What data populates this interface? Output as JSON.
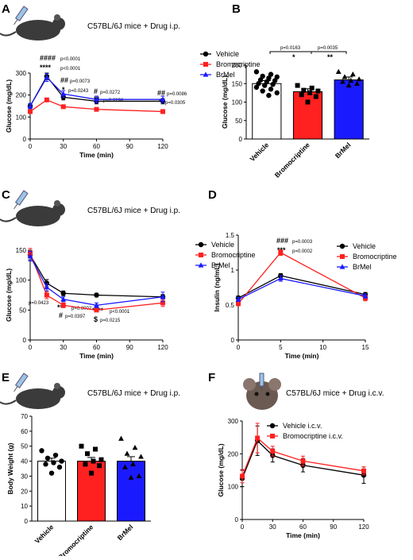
{
  "colors": {
    "vehicle": "#000000",
    "bromocriptine": "#ff2020",
    "brmel": "#1a1aff",
    "bar_vehicle": "#ffffff"
  },
  "icons": {
    "mouse": "mouse-icon",
    "syringe": "syringe-icon"
  },
  "panels": {
    "A": {
      "letter": "A",
      "title": "C57BL/6J mice + Drug i.p.",
      "annotations": [
        {
          "s": "####",
          "p": "p<0.0001"
        },
        {
          "s": "****",
          "p": "p<0.0001"
        },
        {
          "s": "##",
          "p": "p=0.0073"
        },
        {
          "s": "*",
          "p": "p=0.0243"
        },
        {
          "s": "#",
          "p": "p=0.0272"
        },
        {
          "s": "**",
          "p": "p=0.0298"
        },
        {
          "s": "##",
          "p": "p=0.0086"
        },
        {
          "s": "*",
          "p": "p=0.0305"
        }
      ]
    },
    "B": {
      "letter": "B",
      "annotations": [
        {
          "s": "*",
          "p": "p=0.0163"
        },
        {
          "s": "**",
          "p": "p=0.0035"
        }
      ]
    },
    "C": {
      "letter": "C",
      "title": "C57BL/6J mice + Drug i.p.",
      "annotations": [
        {
          "s": "*",
          "p": "p=0.0423"
        },
        {
          "s": "***",
          "p": "p=0.0002"
        },
        {
          "s": "****",
          "p": "p<0.0001"
        },
        {
          "s": "#",
          "p": "p=0.0397"
        },
        {
          "s": "$",
          "p": "p=0.0215"
        }
      ]
    },
    "D": {
      "letter": "D",
      "annotations": [
        {
          "s": "###",
          "p": "p=0.0003"
        },
        {
          "s": "***",
          "p": "p=0.0002"
        }
      ]
    },
    "E": {
      "letter": "E",
      "title": "C57BL/6J mice + Drug i.p."
    },
    "F": {
      "letter": "F",
      "title": "C57BL/6J mice + Drug i.c.v."
    }
  },
  "chart_data": [
    {
      "id": "A",
      "type": "line",
      "x": [
        0,
        15,
        30,
        60,
        120
      ],
      "xlabel": "Time (min)",
      "ylabel": "Glucose (mg/dL)",
      "xlim": [
        0,
        120
      ],
      "ylim": [
        0,
        300
      ],
      "xticks": [
        0,
        30,
        60,
        90,
        120
      ],
      "yticks": [
        0,
        100,
        200,
        300
      ],
      "legend_position": "right",
      "series": [
        {
          "name": "Vehicle",
          "marker": "circle",
          "values": [
            150,
            285,
            190,
            172,
            172
          ],
          "err": [
            10,
            15,
            12,
            12,
            12
          ]
        },
        {
          "name": "Bromocriptine",
          "marker": "square",
          "values": [
            125,
            178,
            147,
            135,
            125
          ],
          "err": [
            6,
            8,
            6,
            6,
            8
          ]
        },
        {
          "name": "BrMel",
          "marker": "triangle",
          "values": [
            150,
            280,
            205,
            180,
            180
          ],
          "err": [
            12,
            18,
            15,
            15,
            15
          ]
        }
      ]
    },
    {
      "id": "B",
      "type": "bar",
      "categories": [
        "Vehicle",
        "Bromocriptine",
        "BrMel"
      ],
      "values": [
        150,
        128,
        160
      ],
      "err": [
        8,
        8,
        8
      ],
      "ylabel": "Glucose (mg/dL)",
      "ylim": [
        0,
        200
      ],
      "yticks": [
        0,
        50,
        100,
        150,
        200
      ],
      "points": [
        [
          182,
          175,
          170,
          168,
          165,
          160,
          158,
          155,
          150,
          148,
          145,
          140,
          135,
          130,
          125,
          118
        ],
        [
          145,
          138,
          132,
          130,
          125,
          120,
          115,
          100
        ],
        [
          182,
          175,
          168,
          162,
          158,
          155,
          150,
          145
        ]
      ]
    },
    {
      "id": "C",
      "type": "line",
      "x": [
        0,
        15,
        30,
        60,
        120
      ],
      "xlabel": "Time (min)",
      "ylabel": "Glucose (mg/dL)",
      "xlim": [
        0,
        120
      ],
      "ylim": [
        0,
        150
      ],
      "xticks": [
        0,
        30,
        60,
        90,
        120
      ],
      "yticks": [
        0,
        50,
        100,
        150
      ],
      "legend_position": "right",
      "series": [
        {
          "name": "Vehicle",
          "marker": "circle",
          "values": [
            142,
            95,
            78,
            75,
            72
          ],
          "err": [
            8,
            6,
            4,
            3,
            4
          ]
        },
        {
          "name": "Bromocriptine",
          "marker": "square",
          "values": [
            145,
            75,
            58,
            50,
            62
          ],
          "err": [
            8,
            6,
            4,
            3,
            6
          ]
        },
        {
          "name": "BrMel",
          "marker": "triangle",
          "values": [
            140,
            88,
            68,
            58,
            72
          ],
          "err": [
            8,
            6,
            4,
            4,
            8
          ]
        }
      ]
    },
    {
      "id": "D",
      "type": "line",
      "x": [
        0,
        5,
        15
      ],
      "xlabel": "Time (min)",
      "ylabel": "Insulin (ng/mL)",
      "xlim": [
        0,
        15
      ],
      "ylim": [
        0,
        1.5
      ],
      "xticks": [
        0,
        5,
        10,
        15
      ],
      "yticks": [
        0.0,
        0.5,
        1.0,
        1.5
      ],
      "legend_position": "right",
      "series": [
        {
          "name": "Vehicle",
          "marker": "circle",
          "values": [
            0.6,
            0.92,
            0.65
          ],
          "err": [
            0.03,
            0.03,
            0.03
          ]
        },
        {
          "name": "Bromocriptine",
          "marker": "square",
          "values": [
            0.52,
            1.25,
            0.6
          ],
          "err": [
            0.03,
            0.04,
            0.04
          ]
        },
        {
          "name": "BrMel",
          "marker": "triangle",
          "values": [
            0.58,
            0.88,
            0.63
          ],
          "err": [
            0.03,
            0.04,
            0.03
          ]
        }
      ]
    },
    {
      "id": "E",
      "type": "bar",
      "categories": [
        "Vehicle",
        "Bromocriptine",
        "BrMel"
      ],
      "values": [
        40,
        40,
        40
      ],
      "err": [
        2,
        2.5,
        3
      ],
      "ylabel": "Body Weight (g)",
      "ylim": [
        0,
        70
      ],
      "yticks": [
        0,
        10,
        20,
        30,
        40,
        50,
        60,
        70
      ],
      "points": [
        [
          47,
          44,
          42,
          40,
          39,
          38,
          36,
          32
        ],
        [
          50,
          48,
          45,
          41,
          40,
          38,
          37,
          32
        ],
        [
          55,
          49,
          45,
          43,
          38,
          36,
          30,
          29
        ]
      ]
    },
    {
      "id": "F",
      "type": "line",
      "x": [
        0,
        15,
        30,
        60,
        120
      ],
      "xlabel": "Time (min)",
      "ylabel": "Glucose (mg/dL)",
      "xlim": [
        0,
        120
      ],
      "ylim": [
        0,
        300
      ],
      "xticks": [
        0,
        30,
        60,
        90,
        120
      ],
      "yticks": [
        0,
        100,
        200,
        300
      ],
      "legend_position": "top-right",
      "series": [
        {
          "name": "Vehicle i.c.v.",
          "marker": "circle",
          "values": [
            125,
            240,
            195,
            165,
            135
          ],
          "err": [
            25,
            45,
            20,
            20,
            25
          ]
        },
        {
          "name": "Bromocriptine i.c.v.",
          "marker": "square",
          "values": [
            132,
            248,
            208,
            178,
            148
          ],
          "err": [
            20,
            45,
            15,
            15,
            12
          ]
        }
      ]
    }
  ]
}
